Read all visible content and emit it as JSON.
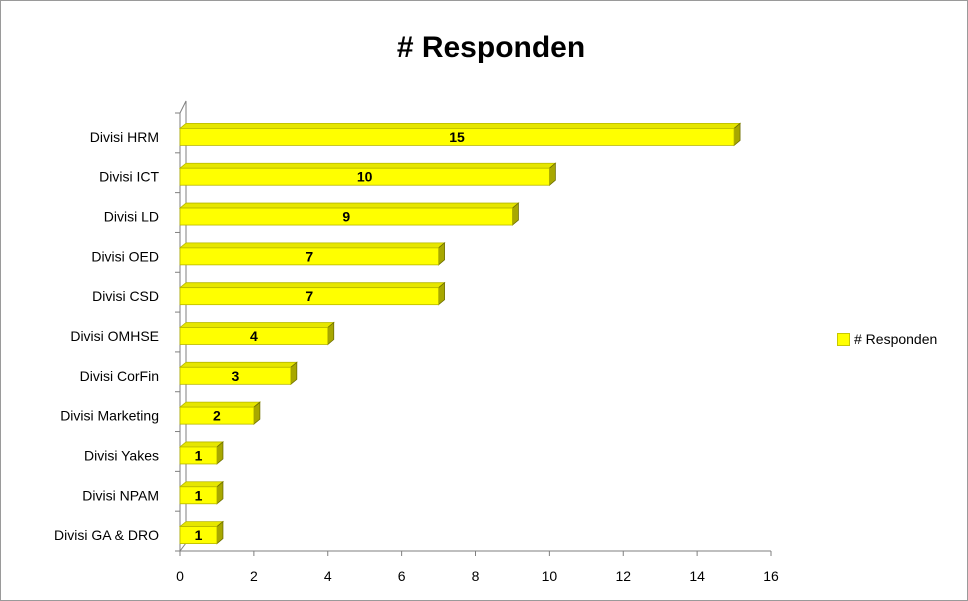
{
  "chart_data": {
    "type": "bar",
    "orientation": "horizontal",
    "title": "# Responden",
    "categories": [
      "Divisi HRM",
      "Divisi ICT",
      "Divisi LD",
      "Divisi OED",
      "Divisi CSD",
      "Divisi OMHSE",
      "Divisi CorFin",
      "Divisi Marketing",
      "Divisi Yakes",
      "Divisi NPAM",
      "Divisi GA & DRO"
    ],
    "series": [
      {
        "name": "# Responden",
        "values": [
          15,
          10,
          9,
          7,
          7,
          4,
          3,
          2,
          1,
          1,
          1
        ]
      }
    ],
    "xlim": [
      0,
      16
    ],
    "x_ticks": [
      0,
      2,
      4,
      6,
      8,
      10,
      12,
      14,
      16
    ],
    "data_labels": true,
    "grid": false,
    "legend_position": "right",
    "bar_color": "#FFFF00",
    "bar_edge_color": "#B8B800"
  }
}
